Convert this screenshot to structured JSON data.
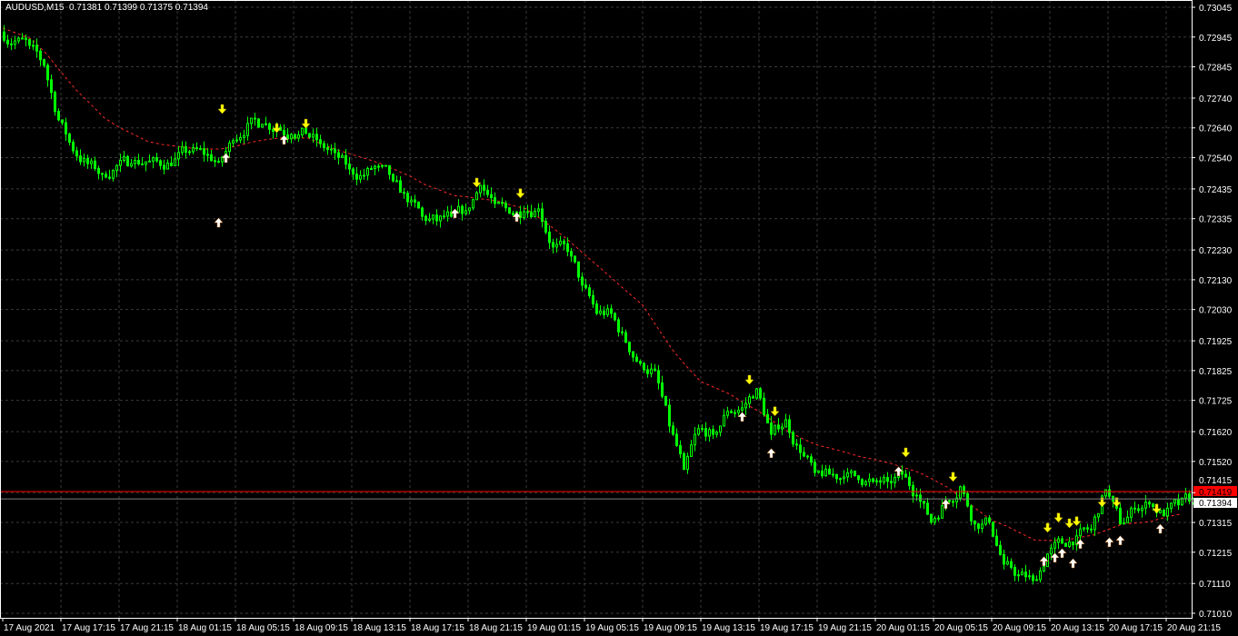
{
  "header": {
    "symbol_line": "AUDUSD,M15  0.71381 0.71399 0.71375 0.71394"
  },
  "chart_data": {
    "type": "candlestick",
    "symbol": "AUDUSD",
    "timeframe": "M15",
    "last_bar": {
      "open": 0.71381,
      "high": 0.71399,
      "low": 0.71375,
      "close": 0.71394
    },
    "bid": 0.71394,
    "ask": 0.71419,
    "ylim": [
      0.7101,
      0.73045
    ],
    "y_ticks": [
      "0.73045",
      "0.72945",
      "0.72845",
      "0.72740",
      "0.72640",
      "0.72540",
      "0.72435",
      "0.72335",
      "0.72230",
      "0.72130",
      "0.72030",
      "0.71925",
      "0.71825",
      "0.71725",
      "0.71620",
      "0.71520",
      "0.71415",
      "0.71315",
      "0.71215",
      "0.71110",
      "0.71010"
    ],
    "x_ticks": [
      "17 Aug 2021",
      "17 Aug 17:15",
      "17 Aug 21:15",
      "18 Aug 01:15",
      "18 Aug 05:15",
      "18 Aug 09:15",
      "18 Aug 13:15",
      "18 Aug 17:15",
      "18 Aug 21:15",
      "19 Aug 01:15",
      "19 Aug 05:15",
      "19 Aug 09:15",
      "19 Aug 13:15",
      "19 Aug 17:15",
      "19 Aug 21:15",
      "20 Aug 01:15",
      "20 Aug 05:15",
      "20 Aug 09:15",
      "20 Aug 13:15",
      "20 Aug 17:15",
      "20 Aug 21:15"
    ],
    "grid": true,
    "hourly_close": [
      0.72932,
      0.72917,
      0.7285,
      0.72667,
      0.72563,
      0.7252,
      0.72484,
      0.72514,
      0.7252,
      0.72526,
      0.72514,
      0.72536,
      0.7256,
      0.72551,
      0.72526,
      0.72597,
      0.72655,
      0.72652,
      0.72642,
      0.72618,
      0.72621,
      0.72587,
      0.72557,
      0.72502,
      0.72481,
      0.72511,
      0.72462,
      0.72392,
      0.72343,
      0.72328,
      0.72343,
      0.72362,
      0.72447,
      0.72386,
      0.72353,
      0.72359,
      0.72368,
      0.7224,
      0.72225,
      0.72112,
      0.72017,
      0.72017,
      0.7192,
      0.71849,
      0.71825,
      0.71639,
      0.71493,
      0.7163,
      0.71611,
      0.71688,
      0.717,
      0.71764,
      0.71611,
      0.7166,
      0.7155,
      0.71483,
      0.71477,
      0.71468,
      0.71459,
      0.71453,
      0.71453,
      0.71477,
      0.71407,
      0.71316,
      0.71389,
      0.71435,
      0.7131,
      0.71316,
      0.71175,
      0.71139,
      0.7112,
      0.71209,
      0.71245,
      0.7127,
      0.71291,
      0.71425,
      0.7131,
      0.71361,
      0.71377,
      0.71337,
      0.71374,
      0.71394
    ],
    "moving_average_hourly": [
      0.72975,
      0.72957,
      0.72938,
      0.72889,
      0.72828,
      0.7277,
      0.72722,
      0.72673,
      0.72642,
      0.72618,
      0.72594,
      0.72584,
      0.72578,
      0.72572,
      0.72569,
      0.72569,
      0.72578,
      0.72591,
      0.726,
      0.72606,
      0.72606,
      0.72606,
      0.72584,
      0.72566,
      0.72551,
      0.72536,
      0.7252,
      0.72499,
      0.72478,
      0.7245,
      0.72432,
      0.72413,
      0.72408,
      0.72401,
      0.72395,
      0.7238,
      0.72368,
      0.72334,
      0.72298,
      0.72258,
      0.72215,
      0.72173,
      0.7213,
      0.72087,
      0.72045,
      0.71971,
      0.71898,
      0.7184,
      0.71788,
      0.71767,
      0.71746,
      0.71715,
      0.71688,
      0.71654,
      0.71621,
      0.71596,
      0.71575,
      0.71563,
      0.7155,
      0.71535,
      0.71526,
      0.71514,
      0.71499,
      0.71483,
      0.71459,
      0.71432,
      0.71395,
      0.71358,
      0.71322,
      0.71303,
      0.71279,
      0.71255,
      0.71255,
      0.71255,
      0.71264,
      0.71273,
      0.71291,
      0.7131,
      0.71313,
      0.71319,
      0.71334,
      0.71343
    ],
    "sell_signals": [
      {
        "time": "18 Aug 04:15",
        "price": 0.72697
      },
      {
        "time": "18 Aug 08:00",
        "price": 0.72633
      },
      {
        "time": "18 Aug 10:00",
        "price": 0.72648
      },
      {
        "time": "18 Aug 21:45",
        "price": 0.7245
      },
      {
        "time": "19 Aug 00:45",
        "price": 0.72414
      },
      {
        "time": "19 Aug 16:30",
        "price": 0.71788
      },
      {
        "time": "19 Aug 18:15",
        "price": 0.71682
      },
      {
        "time": "20 Aug 03:15",
        "price": 0.71544
      },
      {
        "time": "20 Aug 06:30",
        "price": 0.71462
      },
      {
        "time": "20 Aug 13:00",
        "price": 0.71291
      },
      {
        "time": "20 Aug 13:45",
        "price": 0.71325
      },
      {
        "time": "20 Aug 14:30",
        "price": 0.71306
      },
      {
        "time": "20 Aug 15:00",
        "price": 0.71313
      },
      {
        "time": "20 Aug 16:45",
        "price": 0.71377
      },
      {
        "time": "20 Aug 17:45",
        "price": 0.71377
      },
      {
        "time": "20 Aug 20:30",
        "price": 0.71355
      }
    ],
    "buy_signals": [
      {
        "time": "18 Aug 04:00",
        "price": 0.72328
      },
      {
        "time": "18 Aug 04:30",
        "price": 0.72545
      },
      {
        "time": "18 Aug 08:30",
        "price": 0.72606
      },
      {
        "time": "18 Aug 20:15",
        "price": 0.72359
      },
      {
        "time": "19 Aug 00:30",
        "price": 0.72347
      },
      {
        "time": "19 Aug 16:00",
        "price": 0.71676
      },
      {
        "time": "19 Aug 18:00",
        "price": 0.71554
      },
      {
        "time": "20 Aug 02:45",
        "price": 0.71493
      },
      {
        "time": "20 Aug 06:00",
        "price": 0.71383
      },
      {
        "time": "20 Aug 12:45",
        "price": 0.71191
      },
      {
        "time": "20 Aug 13:30",
        "price": 0.71203
      },
      {
        "time": "20 Aug 14:00",
        "price": 0.71218
      },
      {
        "time": "20 Aug 14:45",
        "price": 0.71184
      },
      {
        "time": "20 Aug 15:15",
        "price": 0.71249
      },
      {
        "time": "20 Aug 17:15",
        "price": 0.71255
      },
      {
        "time": "20 Aug 18:00",
        "price": 0.71261
      },
      {
        "time": "20 Aug 20:45",
        "price": 0.713
      }
    ],
    "colors": {
      "background": "#000000",
      "candle": "#00ff00",
      "grid": "#3a3a3a",
      "axis": "#ffffff",
      "ma": "#ff2a2a",
      "ask": "#ff0000",
      "bid": "#808080",
      "sell_arrow": "#ffff00",
      "buy_arrow": "#ffffff"
    }
  }
}
